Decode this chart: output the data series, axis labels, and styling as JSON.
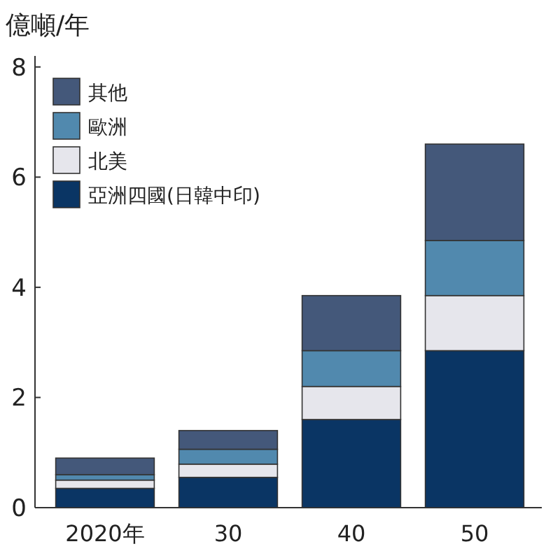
{
  "chart_data": {
    "type": "bar",
    "ylabel": "億噸/年",
    "stacked": true,
    "categories": [
      "2020年",
      "30",
      "40",
      "50"
    ],
    "series": [
      {
        "name": "亞洲四國(日韓中印)",
        "color": "#0a3564",
        "values": [
          0.35,
          0.55,
          1.6,
          2.85
        ]
      },
      {
        "name": "北美",
        "color": "#e6e6ec",
        "values": [
          0.15,
          0.24,
          0.6,
          1.0
        ]
      },
      {
        "name": "歐洲",
        "color": "#5189ae",
        "values": [
          0.1,
          0.27,
          0.65,
          1.0
        ]
      },
      {
        "name": "其他",
        "color": "#44587a",
        "values": [
          0.3,
          0.34,
          1.0,
          1.75
        ]
      }
    ],
    "ylim": [
      0,
      8.2
    ],
    "yticks": [
      0,
      2,
      4,
      6,
      8
    ],
    "grid": false,
    "legend": "top left"
  }
}
